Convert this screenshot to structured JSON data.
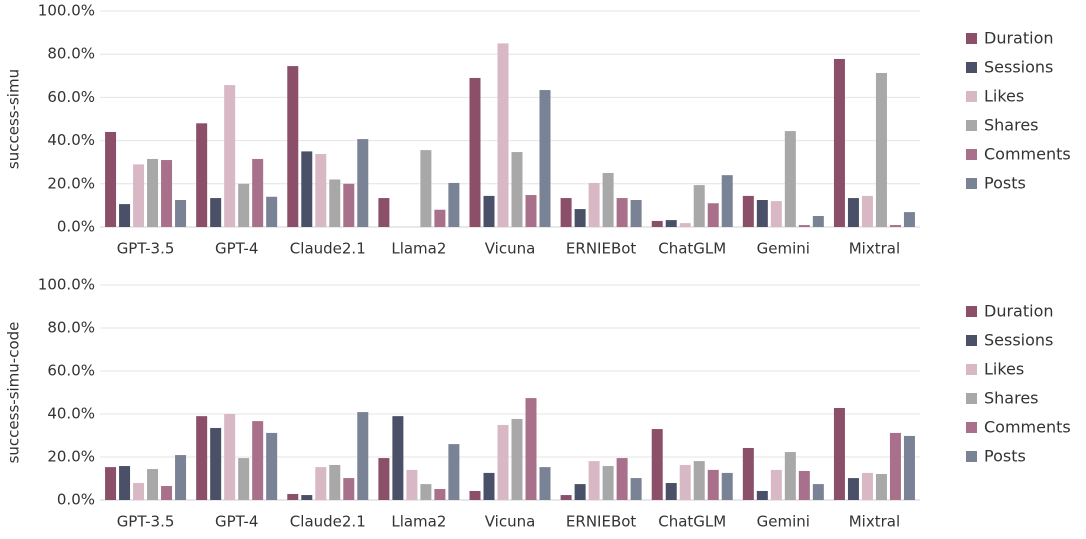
{
  "chart_data": [
    {
      "type": "bar",
      "ylabel": "success-simu",
      "categories": [
        "GPT-3.5",
        "GPT-4",
        "Claude2.1",
        "Llama2",
        "Vicuna",
        "ERNIEBot",
        "ChatGLM",
        "Gemini",
        "Mixtral"
      ],
      "series": [
        {
          "name": "Duration",
          "color": "#8b4f6a",
          "values": [
            44,
            48,
            74.5,
            13.4,
            69,
            13.4,
            2.8,
            14.4,
            77.8
          ]
        },
        {
          "name": "Sessions",
          "color": "#4a5068",
          "values": [
            10.6,
            13.4,
            35,
            0,
            14.4,
            8.3,
            3.2,
            12.5,
            13.4
          ]
        },
        {
          "name": "Likes",
          "color": "#d9b8c6",
          "values": [
            29,
            65.7,
            33.8,
            0,
            85,
            20.4,
            1.8,
            12,
            14.4
          ]
        },
        {
          "name": "Shares",
          "color": "#a8a8a8",
          "values": [
            31.5,
            20,
            22,
            35.6,
            34.7,
            25,
            19.4,
            44.4,
            71.3
          ]
        },
        {
          "name": "Comments",
          "color": "#a8708a",
          "values": [
            31,
            31.5,
            20,
            8,
            14.8,
            13.4,
            11,
            0.9,
            0.9
          ]
        },
        {
          "name": "Posts",
          "color": "#7a8296",
          "values": [
            12.5,
            14,
            40.7,
            20.4,
            63.4,
            12.5,
            24,
            5.1,
            6.9
          ]
        }
      ],
      "ylim": [
        0,
        100
      ],
      "yticks": [
        {
          "value": 0,
          "label": "0.0%"
        },
        {
          "value": 20,
          "label": "20.0%"
        },
        {
          "value": 40,
          "label": "40.0%"
        },
        {
          "value": 60,
          "label": "60.0%"
        },
        {
          "value": 80,
          "label": "80.0%"
        },
        {
          "value": 100,
          "label": "100.0%"
        }
      ],
      "grid": true,
      "legend": "right"
    },
    {
      "type": "bar",
      "ylabel": "success-simu-code",
      "categories": [
        "GPT-3.5",
        "GPT-4",
        "Claude2.1",
        "Llama2",
        "Vicuna",
        "ERNIEBot",
        "ChatGLM",
        "Gemini",
        "Mixtral"
      ],
      "series": [
        {
          "name": "Duration",
          "color": "#8b4f6a",
          "values": [
            15.3,
            39,
            2.8,
            19.5,
            4.2,
            2.3,
            33,
            24.2,
            42.8
          ]
        },
        {
          "name": "Sessions",
          "color": "#4a5068",
          "values": [
            15.8,
            33.5,
            2.3,
            39,
            12.6,
            7.4,
            7.9,
            4.2,
            10.2
          ]
        },
        {
          "name": "Likes",
          "color": "#d9b8c6",
          "values": [
            7.9,
            40,
            15.3,
            14,
            34.9,
            18.1,
            16.3,
            14,
            12.6
          ]
        },
        {
          "name": "Shares",
          "color": "#a8a8a8",
          "values": [
            14.4,
            19.5,
            16.3,
            7.4,
            37.7,
            15.8,
            18.1,
            22.3,
            12.1
          ]
        },
        {
          "name": "Comments",
          "color": "#a8708a",
          "values": [
            6.5,
            36.7,
            10.2,
            5.1,
            47.4,
            19.5,
            14,
            13.5,
            31.2
          ]
        },
        {
          "name": "Posts",
          "color": "#7a8296",
          "values": [
            20.9,
            31.2,
            40.9,
            26,
            15.3,
            10.2,
            12.6,
            7.4,
            29.8
          ]
        }
      ],
      "ylim": [
        0,
        100
      ],
      "yticks": [
        {
          "value": 0,
          "label": "0.0%"
        },
        {
          "value": 20,
          "label": "20.0%"
        },
        {
          "value": 40,
          "label": "40.0%"
        },
        {
          "value": 60,
          "label": "60.0%"
        },
        {
          "value": 80,
          "label": "80.0%"
        },
        {
          "value": 100,
          "label": "100.0%"
        }
      ],
      "grid": true,
      "legend": "right"
    }
  ]
}
